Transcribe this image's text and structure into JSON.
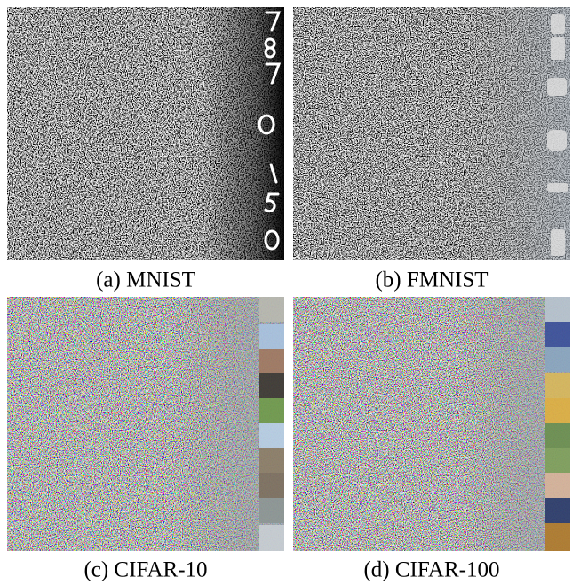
{
  "panels": [
    {
      "caption": "(a) MNIST"
    },
    {
      "caption": "(b) FMNIST"
    },
    {
      "caption": "(c) CIFAR-10"
    },
    {
      "caption": "(d) CIFAR-100"
    }
  ]
}
